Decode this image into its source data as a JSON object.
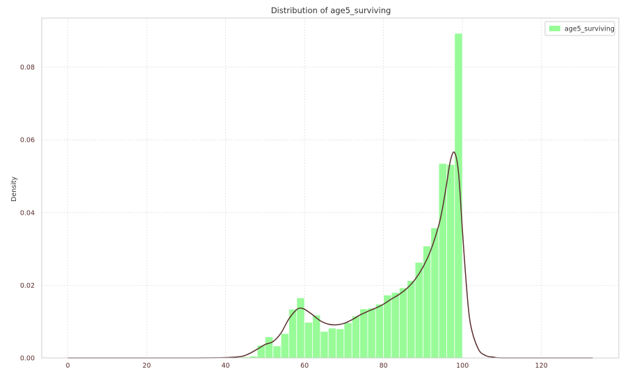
{
  "chart_data": {
    "type": "histogram",
    "title": "Distribution of age5_surviving",
    "xlabel": "",
    "ylabel": "Density",
    "xlim": [
      -6.6,
      139.6
    ],
    "ylim": [
      0,
      0.0935
    ],
    "xticks": [
      0,
      20,
      40,
      60,
      80,
      100,
      120
    ],
    "yticks": [
      0.0,
      0.02,
      0.04,
      0.06,
      0.08
    ],
    "ytick_labels": [
      "0.00",
      "0.02",
      "0.04",
      "0.06",
      "0.08"
    ],
    "grid": true,
    "legend_position": "top-right",
    "colors": {
      "bar": "#98fb98",
      "bar_edge": "#ffffff",
      "kde": "#5a2d2d",
      "grid": "#dddddd",
      "spine": "#cccccc"
    },
    "series": [
      {
        "name": "age5_surviving",
        "bin_width": 2.0,
        "bin_starts": [
          44,
          46,
          48,
          50,
          52,
          54,
          56,
          58,
          60,
          62,
          64,
          66,
          68,
          70,
          72,
          74,
          76,
          78,
          80,
          82,
          84,
          86,
          88,
          90,
          92,
          94,
          96,
          98
        ],
        "density": [
          0.0003,
          0.0005,
          0.0035,
          0.0058,
          0.0033,
          0.0067,
          0.0134,
          0.0165,
          0.0098,
          0.0118,
          0.0073,
          0.0082,
          0.008,
          0.0097,
          0.0115,
          0.0135,
          0.0137,
          0.0148,
          0.0173,
          0.018,
          0.0193,
          0.0213,
          0.0263,
          0.0308,
          0.0358,
          0.0535,
          0.0532,
          0.0893
        ]
      }
    ],
    "kde": {
      "x": [
        0,
        30,
        40,
        44,
        46,
        48,
        50,
        52,
        54,
        56,
        58,
        59,
        60,
        62,
        64,
        66,
        68,
        70,
        72,
        74,
        76,
        78,
        80,
        82,
        84,
        86,
        88,
        90,
        92,
        94,
        95,
        96,
        97,
        98,
        99,
        100,
        101,
        102,
        104,
        106,
        108,
        110,
        120,
        133
      ],
      "y": [
        0,
        0,
        0.0001,
        0.0004,
        0.0012,
        0.0024,
        0.0037,
        0.0045,
        0.0068,
        0.0107,
        0.0133,
        0.0137,
        0.0134,
        0.0119,
        0.0102,
        0.0093,
        0.0091,
        0.0095,
        0.0105,
        0.0118,
        0.0128,
        0.0137,
        0.0148,
        0.0162,
        0.0175,
        0.0192,
        0.0216,
        0.025,
        0.0297,
        0.0365,
        0.0415,
        0.048,
        0.0545,
        0.0565,
        0.051,
        0.035,
        0.02,
        0.0095,
        0.0025,
        0.0006,
        0.0002,
        0,
        0,
        0
      ]
    }
  }
}
